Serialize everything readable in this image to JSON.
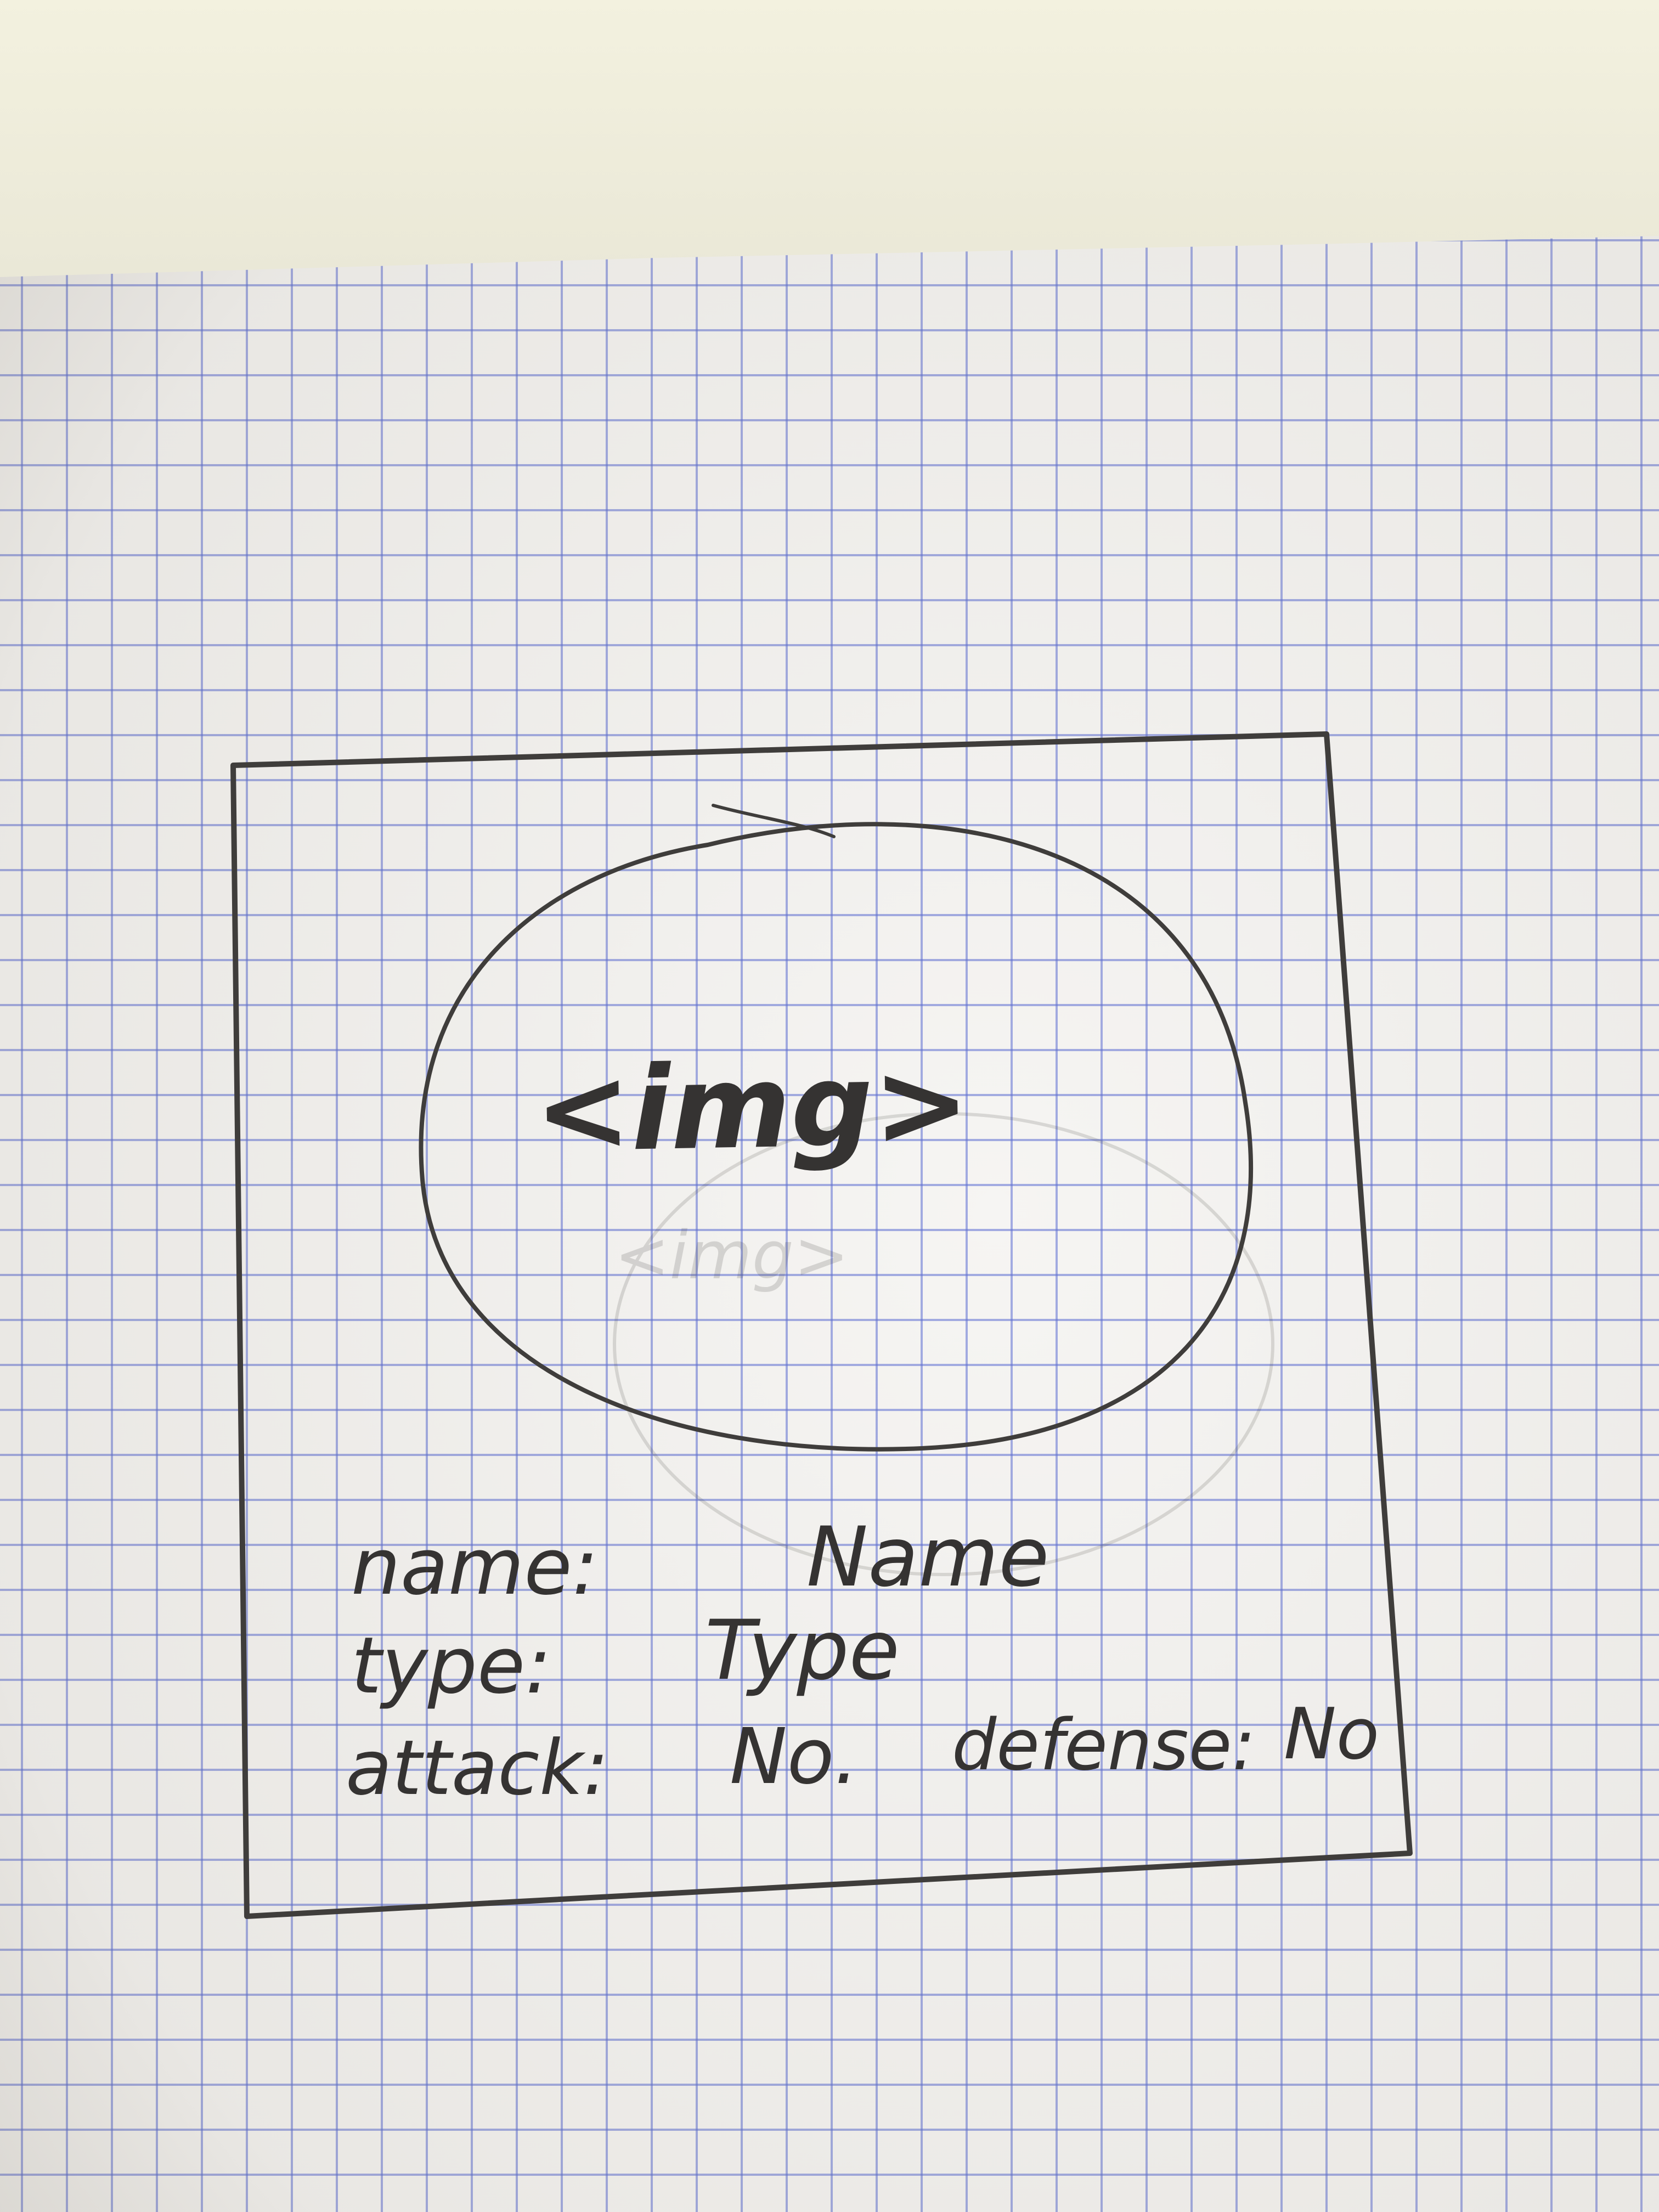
{
  "sketch": {
    "placeholder_label": "<img>",
    "fields": [
      {
        "label": "name:",
        "value": "Name"
      },
      {
        "label": "type:",
        "value": "Type"
      },
      {
        "label": "attack:",
        "value": "No."
      }
    ],
    "extra_field": {
      "label": "defense:",
      "value": "No"
    }
  },
  "colors": {
    "pencil": "#3f3d3b",
    "grid_lines": "#5c6ed2",
    "paper": "#f6f5f3"
  }
}
